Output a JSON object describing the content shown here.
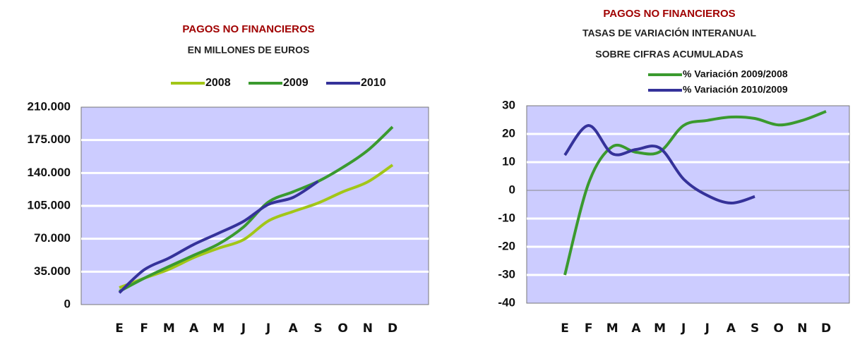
{
  "chart_data": [
    {
      "type": "line",
      "title": "PAGOS NO FINANCIEROS",
      "subtitle": "EN MILLONES DE EUROS",
      "categories": [
        "E",
        "F",
        "M",
        "A",
        "M",
        "J",
        "J",
        "A",
        "S",
        "O",
        "N",
        "D"
      ],
      "series": [
        {
          "name": "2008",
          "color": "#a2c617",
          "values": [
            18000,
            28000,
            37500,
            50000,
            60000,
            69000,
            89000,
            99000,
            108000,
            120000,
            130500,
            148500
          ]
        },
        {
          "name": "2009",
          "color": "#3a9a2e",
          "values": [
            14000,
            28000,
            40500,
            52500,
            64500,
            82500,
            109000,
            120000,
            131000,
            146000,
            164000,
            189000
          ]
        },
        {
          "name": "2010",
          "color": "#35329a",
          "values": [
            12500,
            37000,
            49500,
            64000,
            76000,
            88500,
            106500,
            114000,
            131000,
            null,
            null,
            null
          ]
        }
      ],
      "ylim": [
        0,
        210000
      ],
      "yticks": [
        0,
        {
          "value": 35000,
          "label": "35.000"
        },
        {
          "value": 70000,
          "label": "70.000"
        },
        {
          "value": 105000,
          "label": "105.000"
        },
        {
          "value": 140000,
          "label": "140.000"
        },
        {
          "value": 175000,
          "label": "175.000"
        },
        {
          "value": 210000,
          "label": "210.000"
        }
      ],
      "grid": true,
      "legend": "top"
    },
    {
      "type": "line",
      "title": "PAGOS NO FINANCIEROS",
      "subtitle": [
        "TASAS DE VARIACIÓN INTERANUAL",
        "SOBRE CIFRAS ACUMULADAS"
      ],
      "categories": [
        "E",
        "F",
        "M",
        "A",
        "M",
        "J",
        "J",
        "A",
        "S",
        "O",
        "N",
        "D"
      ],
      "series": [
        {
          "name": "% Variación 2009/2008",
          "color": "#3a9a2e",
          "values": [
            -30,
            2.5,
            15.5,
            13.5,
            13.7,
            23,
            24.8,
            26,
            25.5,
            23.2,
            24.8,
            28
          ]
        },
        {
          "name": "% Variación 2010/2009",
          "color": "#35329a",
          "values": [
            12.5,
            23,
            13,
            14.5,
            15,
            4,
            -1.8,
            -4.5,
            -2.2,
            null,
            null,
            null
          ]
        }
      ],
      "ylim": [
        -40,
        30
      ],
      "yticks": [
        -40,
        -30,
        -20,
        -10,
        0,
        10,
        20,
        30
      ],
      "grid": true,
      "legend": "top-right"
    }
  ]
}
